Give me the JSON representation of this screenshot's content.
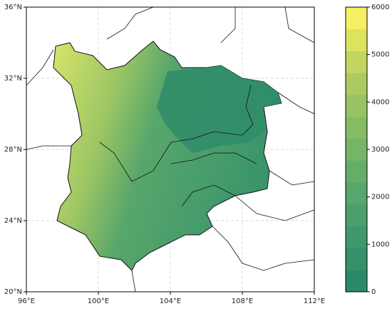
{
  "map": {
    "xticks": [
      {
        "value": 96,
        "label": "96°E"
      },
      {
        "value": 100,
        "label": "100°E"
      },
      {
        "value": 104,
        "label": "104°E"
      },
      {
        "value": 108,
        "label": "108°E"
      },
      {
        "value": 112,
        "label": "112°E"
      }
    ],
    "yticks": [
      {
        "value": 20,
        "label": "20°N"
      },
      {
        "value": 24,
        "label": "24°N"
      },
      {
        "value": 28,
        "label": "28°N"
      },
      {
        "value": 32,
        "label": "32°N"
      },
      {
        "value": 36,
        "label": "36°N"
      }
    ],
    "xlim": [
      96,
      112
    ],
    "ylim": [
      20,
      36
    ],
    "grid": true,
    "colorbar": {
      "lim": [
        0,
        6000
      ],
      "ticks": [
        0,
        1000,
        2000,
        3000,
        4000,
        5000,
        6000
      ],
      "colors": [
        "#2a8a68",
        "#34916a",
        "#3f986b",
        "#4b9f6b",
        "#58a66b",
        "#66ad6a",
        "#76b468",
        "#86bb65",
        "#98c363",
        "#abcb61",
        "#c2d560",
        "#dde35f",
        "#f5f062"
      ]
    }
  }
}
